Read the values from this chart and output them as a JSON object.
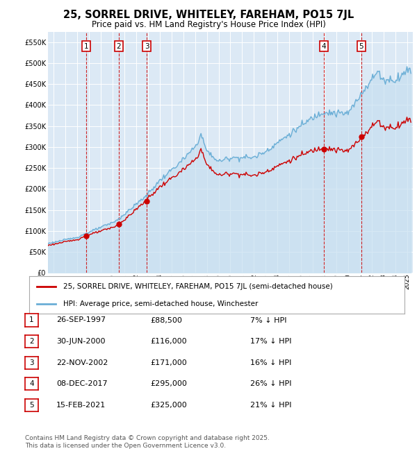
{
  "title": "25, SORREL DRIVE, WHITELEY, FAREHAM, PO15 7JL",
  "subtitle": "Price paid vs. HM Land Registry's House Price Index (HPI)",
  "transactions": [
    {
      "num": 1,
      "date_str": "26-SEP-1997",
      "date_x": 1997.74,
      "price": 88500,
      "pct": "7%"
    },
    {
      "num": 2,
      "date_str": "30-JUN-2000",
      "date_x": 2000.5,
      "price": 116000,
      "pct": "17%"
    },
    {
      "num": 3,
      "date_str": "22-NOV-2002",
      "date_x": 2002.89,
      "price": 171000,
      "pct": "16%"
    },
    {
      "num": 4,
      "date_str": "08-DEC-2017",
      "date_x": 2017.94,
      "price": 295000,
      "pct": "26%"
    },
    {
      "num": 5,
      "date_str": "15-FEB-2021",
      "date_x": 2021.12,
      "price": 325000,
      "pct": "21%"
    }
  ],
  "hpi_color": "#6aaed6",
  "hpi_fill_color": "#c6dff0",
  "price_color": "#cc0000",
  "vline_color": "#cc0000",
  "box_color": "#cc0000",
  "ylim": [
    0,
    575000
  ],
  "xlim": [
    1994.5,
    2025.5
  ],
  "yticks": [
    0,
    50000,
    100000,
    150000,
    200000,
    250000,
    300000,
    350000,
    400000,
    450000,
    500000,
    550000
  ],
  "plot_bg": "#dce9f5",
  "grid_color": "#FFFFFF",
  "legend_label_price": "25, SORREL DRIVE, WHITELEY, FAREHAM, PO15 7JL (semi-detached house)",
  "legend_label_hpi": "HPI: Average price, semi-detached house, Winchester",
  "footer": "Contains HM Land Registry data © Crown copyright and database right 2025.\nThis data is licensed under the Open Government Licence v3.0."
}
